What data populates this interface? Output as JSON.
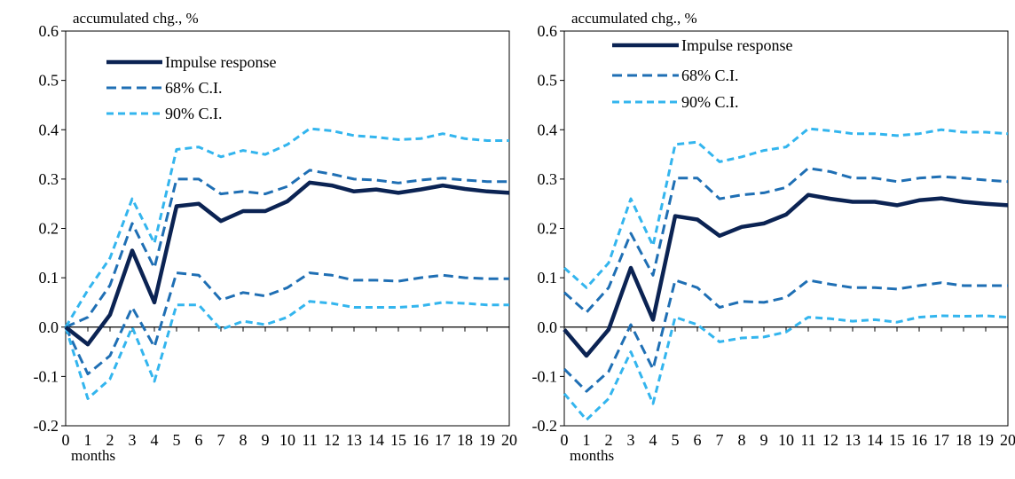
{
  "colors": {
    "impulse": "#0b2353",
    "ci68": "#1f6fb4",
    "ci90": "#33b5ee",
    "axis": "#000000"
  },
  "chart_data": [
    {
      "type": "line",
      "ylabel": "accumulated chg., %",
      "xlabel": "months",
      "ylim": [
        -0.2,
        0.6
      ],
      "yticks": [
        "0.6",
        "0.5",
        "0.4",
        "0.3",
        "0.2",
        "0.1",
        "0.0",
        "-0.1",
        "-0.2"
      ],
      "x": [
        "0",
        "1",
        "2",
        "3",
        "4",
        "5",
        "6",
        "7",
        "8",
        "9",
        "10",
        "11",
        "12",
        "13",
        "14",
        "15",
        "16",
        "17",
        "18",
        "19",
        "20"
      ],
      "legend": [
        "Impulse response",
        "68% C.I.",
        "90% C.I."
      ],
      "series": [
        {
          "name": "Impulse response",
          "values": [
            0.0,
            -0.035,
            0.025,
            0.155,
            0.05,
            0.245,
            0.25,
            0.215,
            0.235,
            0.235,
            0.255,
            0.293,
            0.287,
            0.275,
            0.279,
            0.272,
            0.279,
            0.287,
            0.28,
            0.275,
            0.272
          ]
        },
        {
          "name": "68% C.I.",
          "values": [
            0.0,
            0.02,
            0.085,
            0.21,
            0.12,
            0.3,
            0.3,
            0.27,
            0.275,
            0.27,
            0.285,
            0.318,
            0.31,
            0.3,
            0.298,
            0.292,
            0.298,
            0.302,
            0.298,
            0.295,
            0.295
          ]
        },
        {
          "name": "68% C.I.",
          "values": [
            0.0,
            -0.095,
            -0.058,
            0.04,
            -0.04,
            0.11,
            0.105,
            0.055,
            0.07,
            0.063,
            0.08,
            0.11,
            0.105,
            0.095,
            0.095,
            0.093,
            0.1,
            0.105,
            0.1,
            0.098,
            0.098
          ]
        },
        {
          "name": "90% C.I.",
          "values": [
            0.0,
            0.075,
            0.14,
            0.26,
            0.17,
            0.36,
            0.365,
            0.345,
            0.358,
            0.35,
            0.37,
            0.402,
            0.398,
            0.388,
            0.385,
            0.38,
            0.382,
            0.392,
            0.382,
            0.378,
            0.378
          ]
        },
        {
          "name": "90% C.I.",
          "values": [
            0.0,
            -0.145,
            -0.105,
            0.0,
            -0.11,
            0.045,
            0.045,
            -0.005,
            0.012,
            0.005,
            0.02,
            0.052,
            0.048,
            0.04,
            0.04,
            0.04,
            0.043,
            0.05,
            0.048,
            0.045,
            0.045
          ]
        }
      ]
    },
    {
      "type": "line",
      "ylabel": "accumulated chg., %",
      "xlabel": "months",
      "ylim": [
        -0.2,
        0.6
      ],
      "yticks": [
        "0.6",
        "0.5",
        "0.4",
        "0.3",
        "0.2",
        "0.1",
        "0.0",
        "-0.1",
        "-0.2"
      ],
      "x": [
        "0",
        "1",
        "2",
        "3",
        "4",
        "5",
        "6",
        "7",
        "8",
        "9",
        "10",
        "11",
        "12",
        "13",
        "14",
        "15",
        "16",
        "17",
        "18",
        "19",
        "20"
      ],
      "legend": [
        "Impulse response",
        "68% C.I.",
        "90% C.I."
      ],
      "series": [
        {
          "name": "Impulse response",
          "values": [
            -0.005,
            -0.058,
            -0.005,
            0.12,
            0.015,
            0.225,
            0.218,
            0.185,
            0.203,
            0.21,
            0.228,
            0.268,
            0.26,
            0.254,
            0.254,
            0.247,
            0.257,
            0.261,
            0.254,
            0.25,
            0.247
          ]
        },
        {
          "name": "68% C.I.",
          "values": [
            0.07,
            0.03,
            0.08,
            0.19,
            0.105,
            0.302,
            0.302,
            0.26,
            0.268,
            0.272,
            0.283,
            0.322,
            0.315,
            0.302,
            0.302,
            0.295,
            0.302,
            0.305,
            0.302,
            0.298,
            0.295
          ]
        },
        {
          "name": "68% C.I.",
          "values": [
            -0.085,
            -0.13,
            -0.09,
            0.005,
            -0.085,
            0.095,
            0.08,
            0.04,
            0.052,
            0.05,
            0.06,
            0.095,
            0.087,
            0.08,
            0.08,
            0.077,
            0.084,
            0.09,
            0.084,
            0.084,
            0.084
          ]
        },
        {
          "name": "90% C.I.",
          "values": [
            0.12,
            0.08,
            0.13,
            0.26,
            0.165,
            0.37,
            0.375,
            0.335,
            0.345,
            0.358,
            0.365,
            0.402,
            0.398,
            0.392,
            0.392,
            0.388,
            0.392,
            0.4,
            0.395,
            0.395,
            0.392
          ]
        },
        {
          "name": "90% C.I.",
          "values": [
            -0.135,
            -0.188,
            -0.145,
            -0.05,
            -0.155,
            0.02,
            0.005,
            -0.03,
            -0.022,
            -0.02,
            -0.01,
            0.02,
            0.017,
            0.012,
            0.015,
            0.01,
            0.02,
            0.023,
            0.022,
            0.023,
            0.02
          ]
        }
      ]
    }
  ]
}
